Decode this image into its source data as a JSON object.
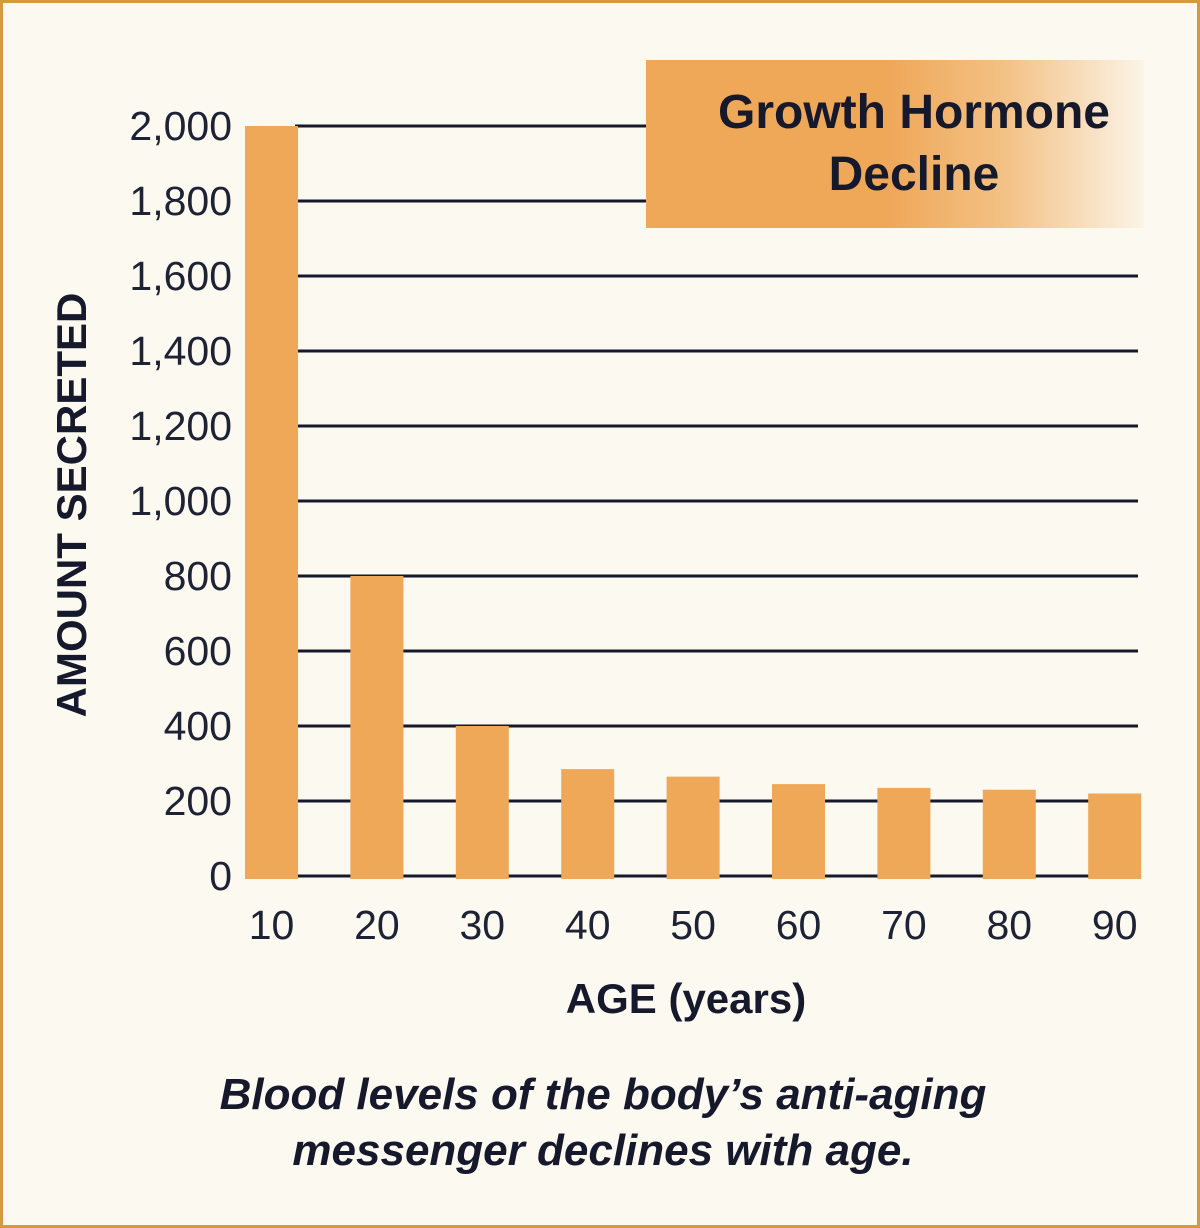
{
  "chart_data": {
    "type": "bar",
    "title": "Growth Hormone\nDecline",
    "xlabel": "AGE (years)",
    "ylabel": "AMOUNT SECRETED",
    "categories": [
      "10",
      "20",
      "30",
      "40",
      "50",
      "60",
      "70",
      "80",
      "90"
    ],
    "values": [
      2000,
      800,
      400,
      285,
      265,
      245,
      235,
      230,
      220
    ],
    "ylim": [
      0,
      2000
    ],
    "yticks": [
      0,
      200,
      400,
      600,
      800,
      1000,
      1200,
      1400,
      1600,
      1800,
      2000
    ],
    "ytick_labels": [
      "0",
      "200",
      "400",
      "600",
      "800",
      "1,000",
      "1,200",
      "1,400",
      "1,600",
      "1,800",
      "2,000"
    ],
    "grid": true,
    "caption": "Blood levels of the body’s anti-aging messenger declines with age.",
    "colors": {
      "bar": "#efa758",
      "grid": "#15192b",
      "text": "#15192b",
      "background": "#fcf9f1",
      "border": "#d39a3f"
    }
  }
}
